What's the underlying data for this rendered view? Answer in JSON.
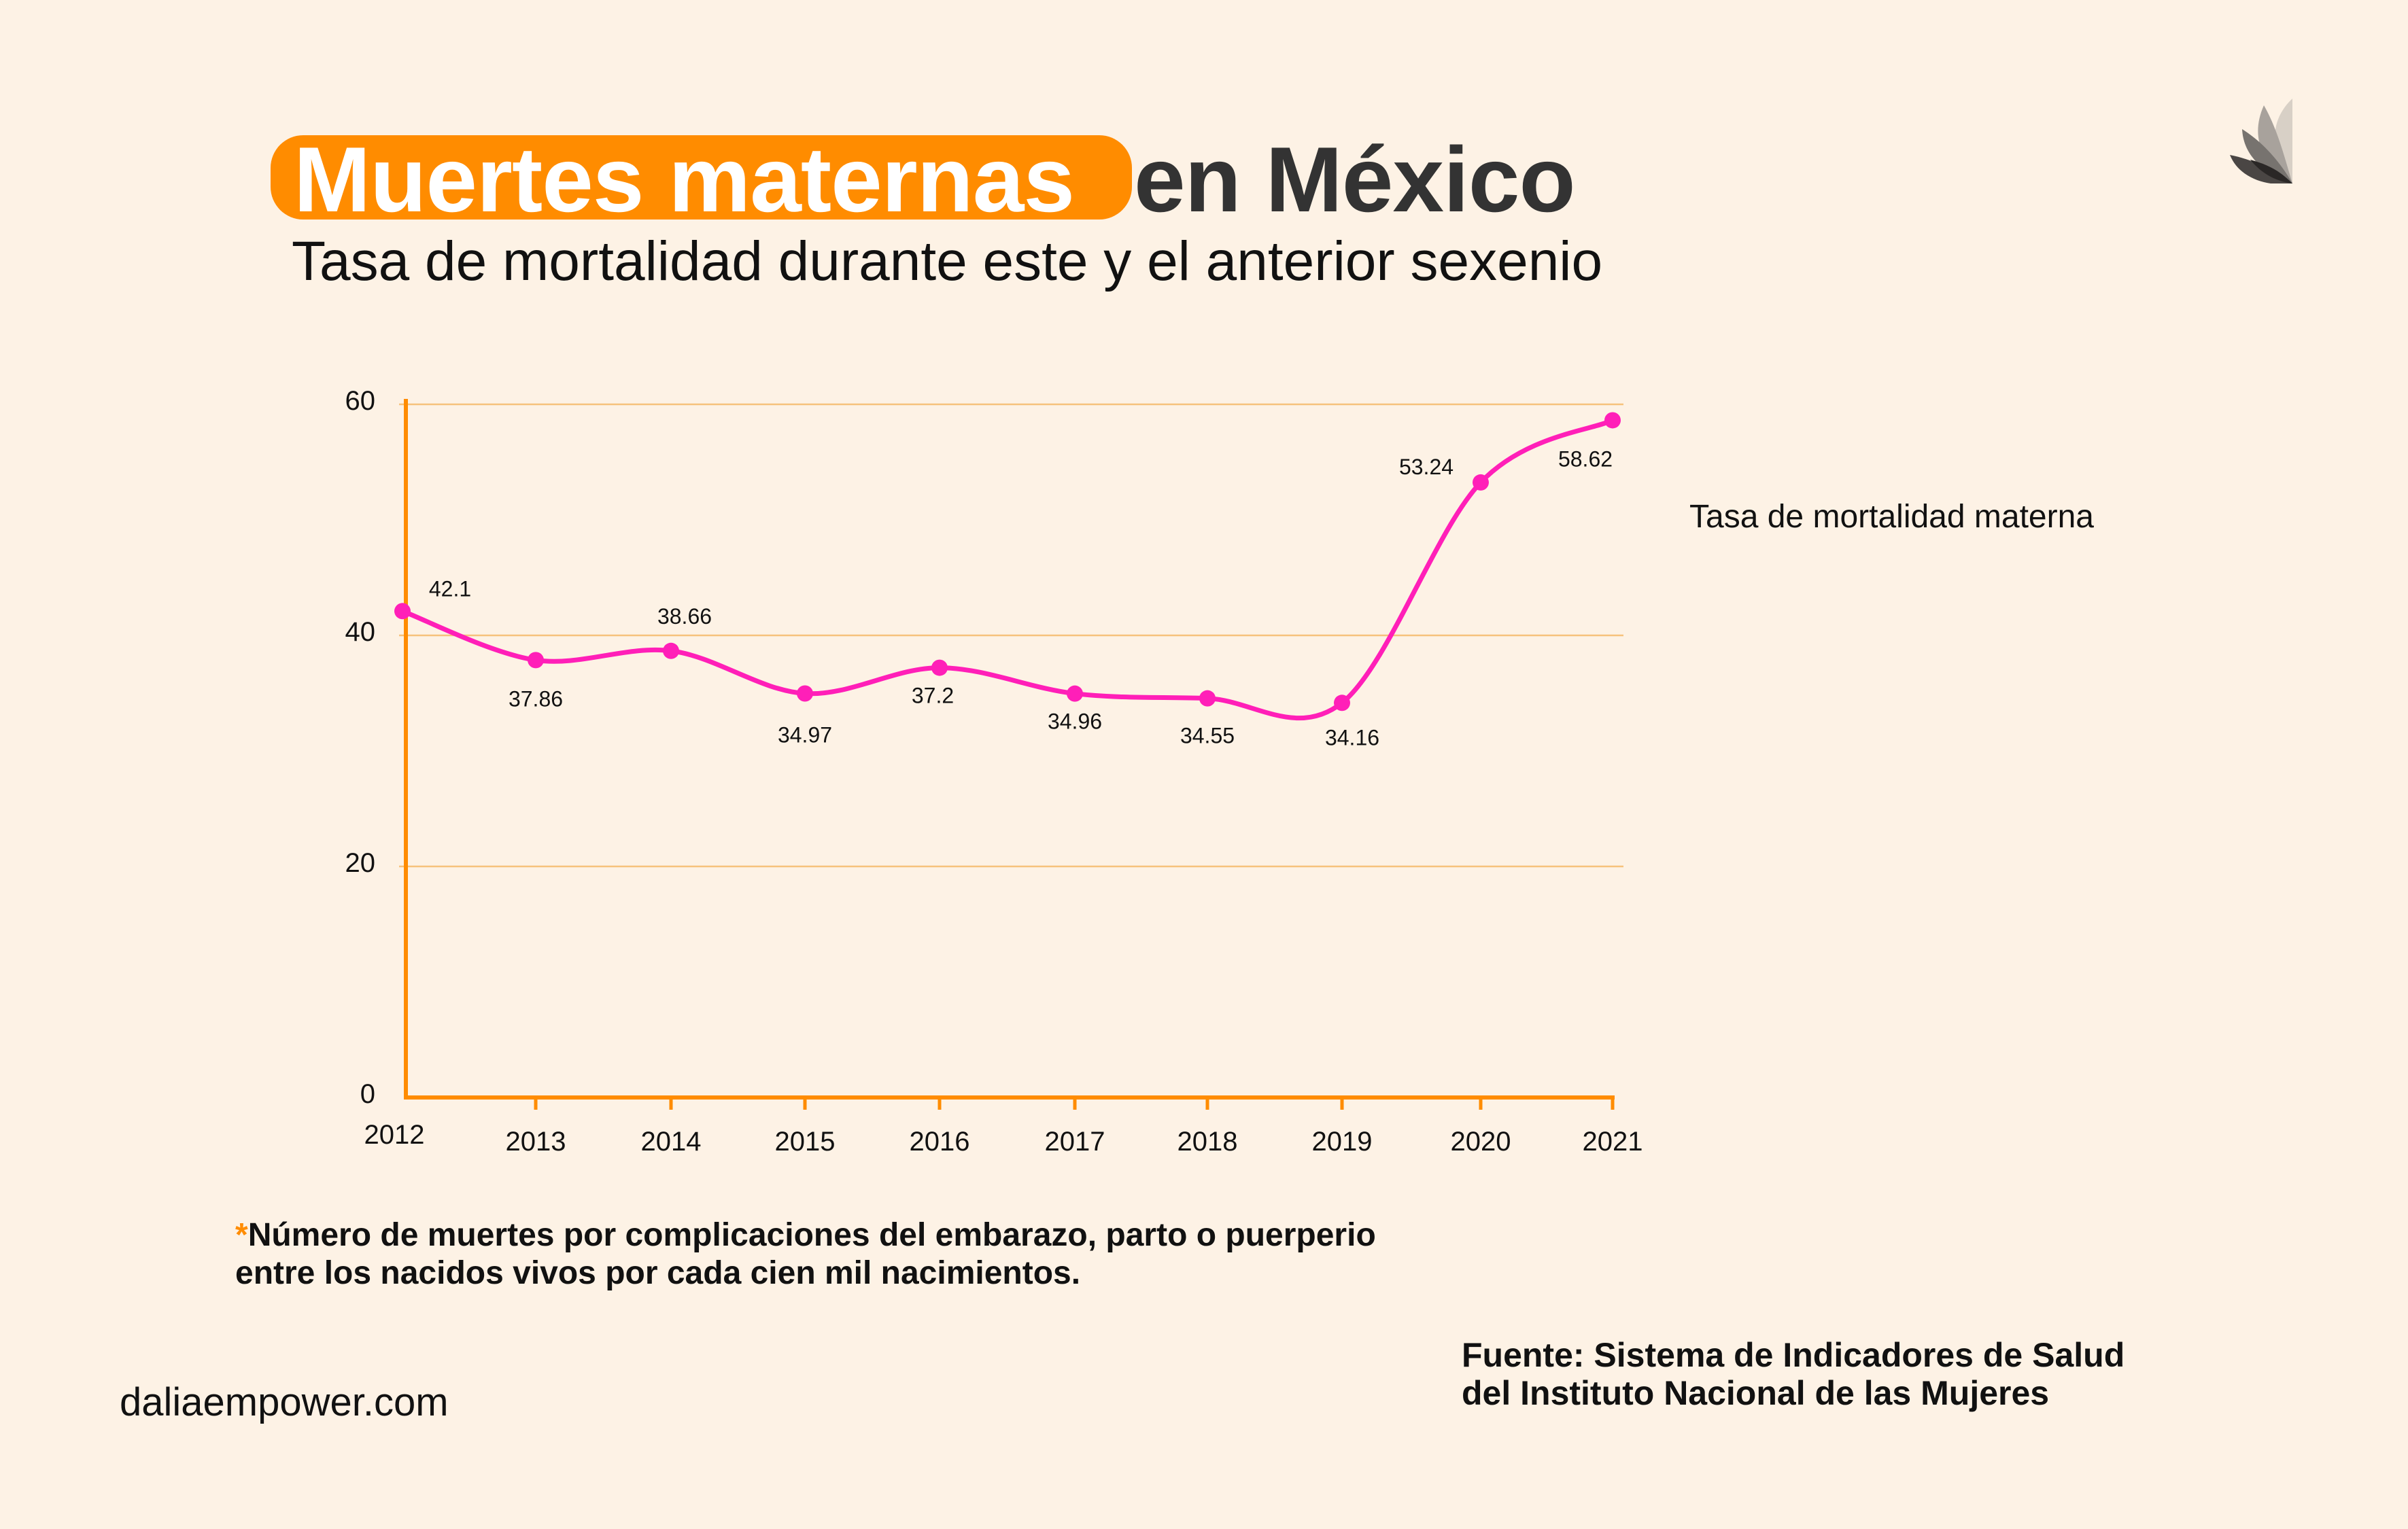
{
  "header": {
    "title_highlight": "Muertes maternas",
    "title_rest": "en México",
    "subtitle": "Tasa de mortalidad durante este y el anterior sexenio"
  },
  "logo": {
    "icon": "lotus-petals-icon",
    "colors": [
      "#d8d0c6",
      "#a8a29c",
      "#77736f",
      "#4a4644",
      "#2a2726"
    ]
  },
  "colors": {
    "accent": "#ff8c00",
    "line": "#ff1fb8",
    "background": "#fdf2e5",
    "grid": "#f6c27c"
  },
  "chart_data": {
    "type": "line",
    "title": "Muertes maternas en México",
    "subtitle": "Tasa de mortalidad durante este y el anterior sexenio",
    "xlabel": "",
    "ylabel": "",
    "categories": [
      "2012",
      "2013",
      "2014",
      "2015",
      "2016",
      "2017",
      "2018",
      "2019",
      "2020",
      "2021"
    ],
    "series": [
      {
        "name": "Tasa de mortalidad materna",
        "values": [
          42.1,
          37.86,
          38.66,
          34.97,
          37.2,
          34.96,
          34.55,
          34.16,
          53.24,
          58.62
        ],
        "labels": [
          "42.1",
          "37.86",
          "38.66",
          "34.97",
          "37.2",
          "34.96",
          "34.55",
          "34.16",
          "53.24",
          "58.62"
        ]
      }
    ],
    "ylim": [
      0,
      60
    ],
    "yticks": [
      "0",
      "20",
      "40",
      "60"
    ],
    "grid": true,
    "legend": "right",
    "smooth": true
  },
  "footnote": {
    "marker": "*",
    "line1": "Número de muertes por complicaciones del embarazo, parto o puerperio",
    "line2": "entre los nacidos vivos por cada cien mil nacimientos."
  },
  "source": {
    "line1": "Fuente: Sistema de Indicadores de Salud",
    "line2": "del Instituto Nacional de las Mujeres"
  },
  "site": "daliaempower.com"
}
